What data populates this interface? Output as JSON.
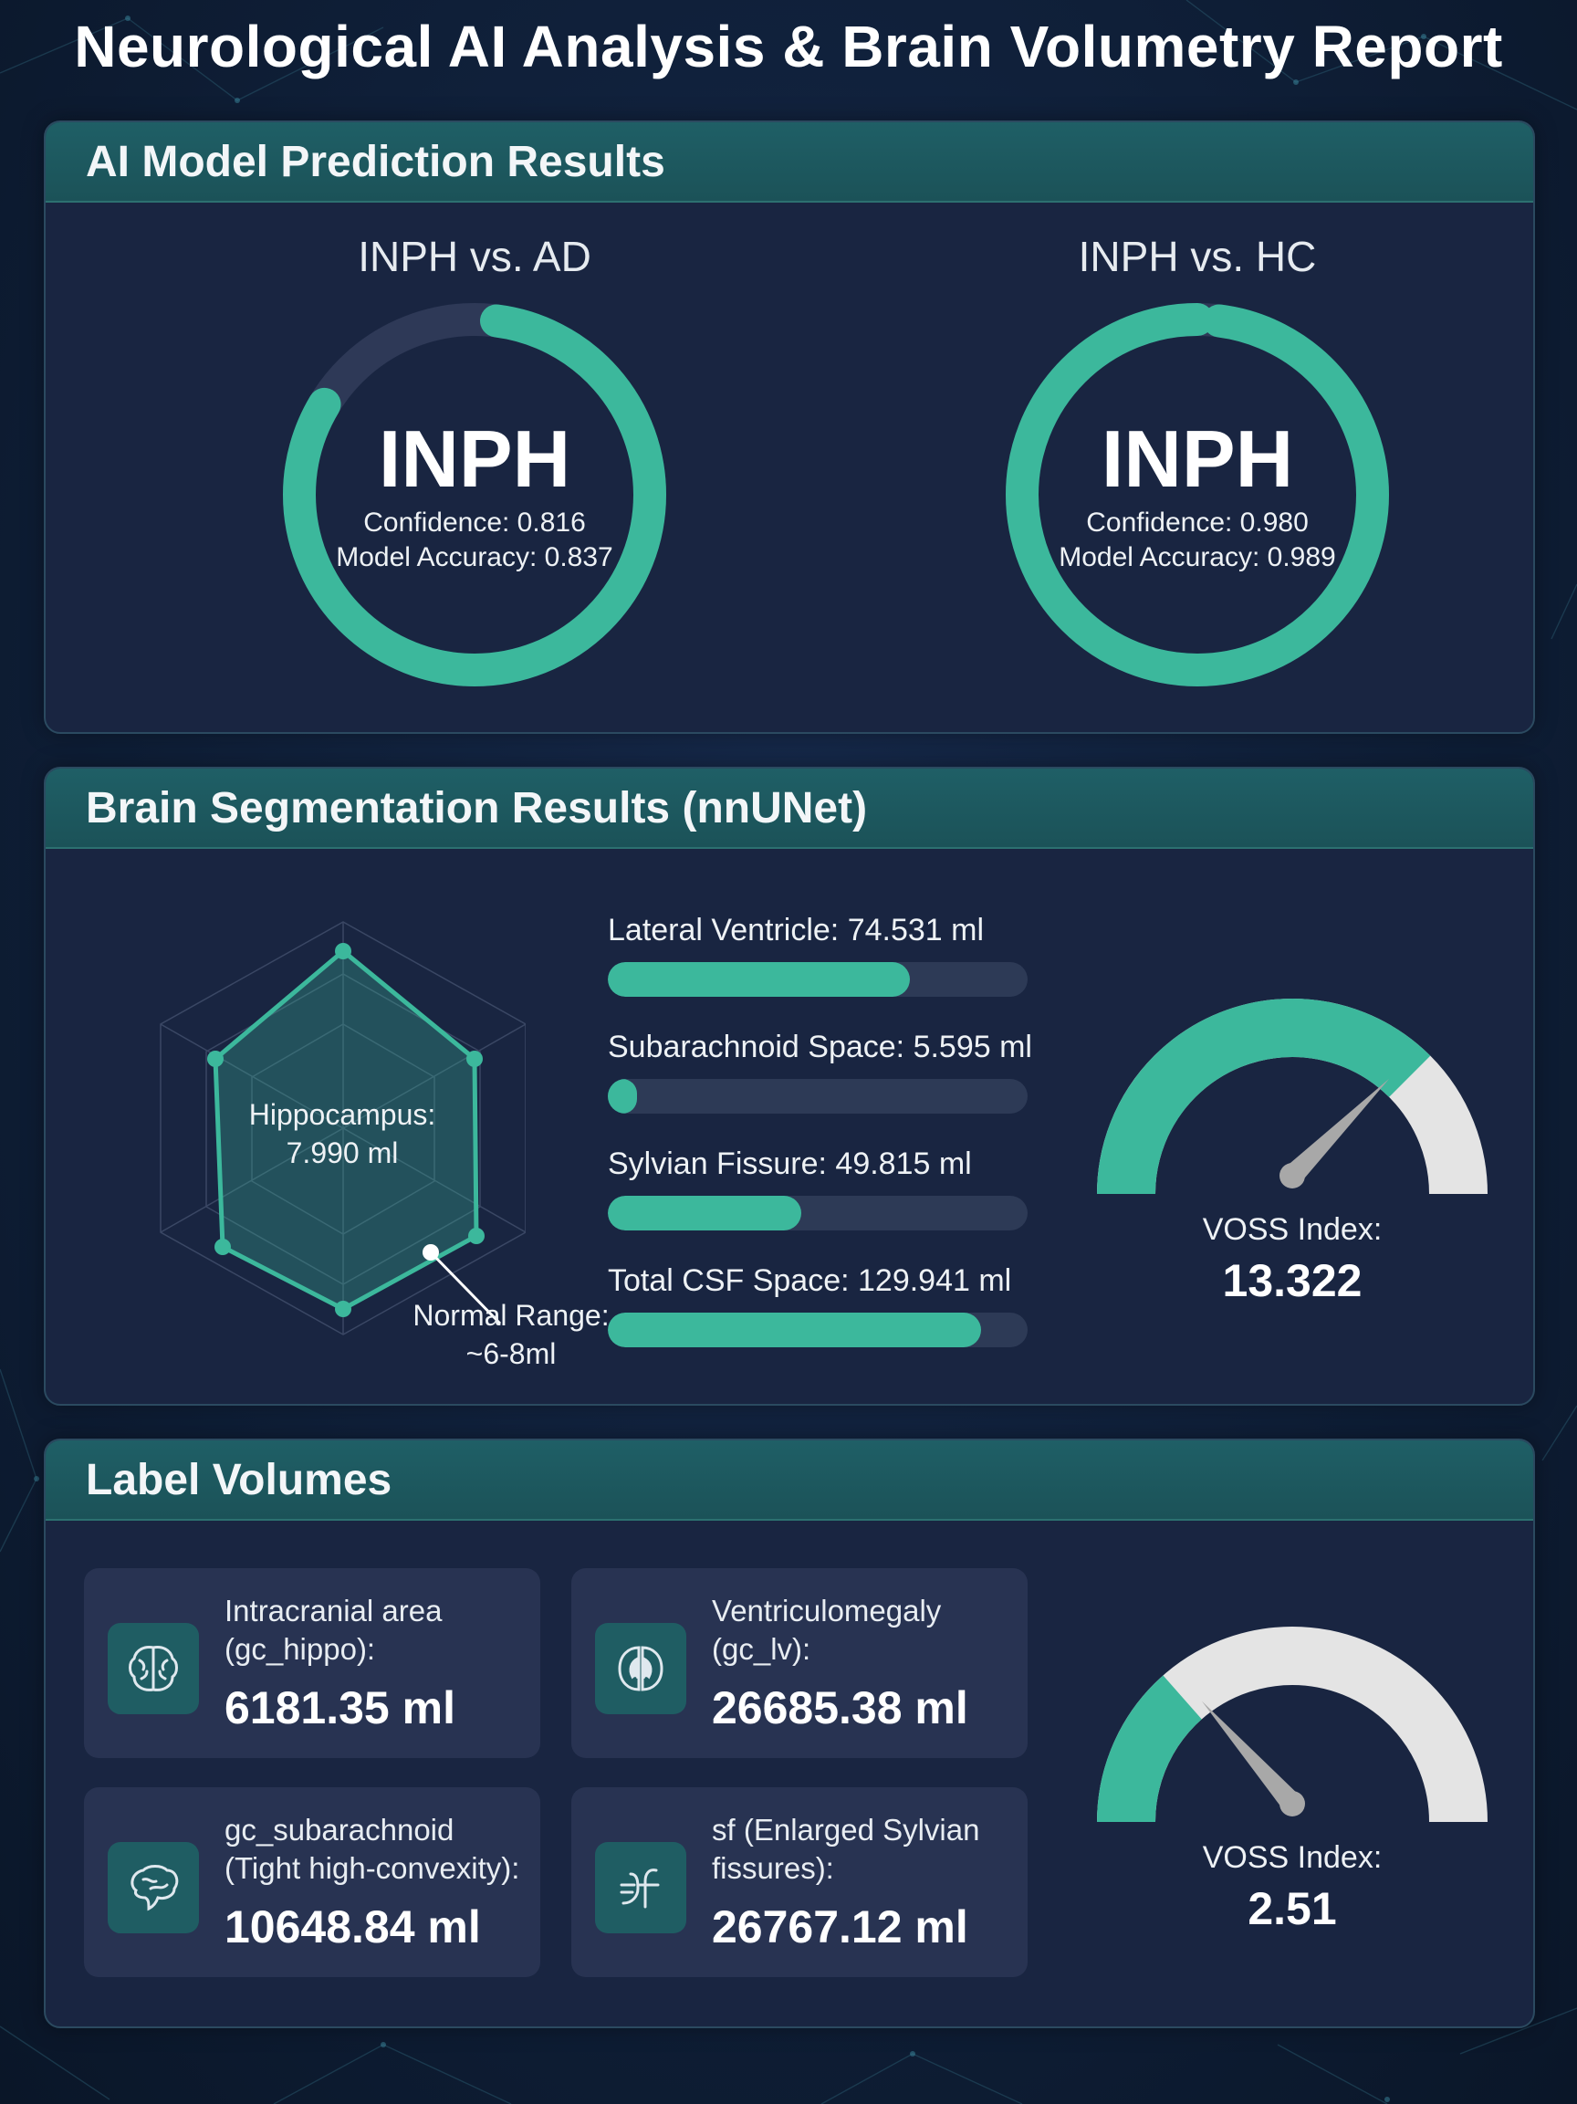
{
  "page": {
    "title": "Neurological AI Analysis & Brain Volumetry Report"
  },
  "colors": {
    "accent": "#3cb89c",
    "track": "#2d3a56",
    "gauge_track": "#e4e4e4",
    "panel": "#192541",
    "header": "#1f5f66"
  },
  "prediction": {
    "heading": "AI Model Prediction Results",
    "models": [
      {
        "title": "INPH vs. AD",
        "result": "INPH",
        "confidence_text": "Confidence: 0.816",
        "accuracy_text": "Model Accuracy: 0.837",
        "confidence": 0.816
      },
      {
        "title": "INPH vs. HC",
        "result": "INPH",
        "confidence_text": "Confidence: 0.980",
        "accuracy_text": "Model Accuracy: 0.989",
        "confidence": 0.98
      }
    ]
  },
  "segmentation": {
    "heading": "Brain Segmentation Results (nnUNet)",
    "radar": {
      "label_line1": "Hippocampus:",
      "label_line2": "7.990 ml",
      "range_line1": "Normal Range:",
      "range_line2": "~6-8ml"
    },
    "bars": [
      {
        "label": "Lateral Ventricle: 74.531 ml",
        "fraction": 0.72
      },
      {
        "label": "Subarachnoid Space: 5.595 ml",
        "fraction": 0.07
      },
      {
        "label": "Sylvian Fissure: 49.815 ml",
        "fraction": 0.46
      },
      {
        "label": "Total CSF Space: 129.941 ml",
        "fraction": 0.89
      }
    ],
    "gauge": {
      "label": "VOSS Index:",
      "value": "13.322",
      "fraction": 0.75
    }
  },
  "labels": {
    "heading": "Label Volumes",
    "cards": [
      {
        "line1": "Intracranial area",
        "line2": "(gc_hippo):",
        "value": "6181.35 ml",
        "icon": "brain-icon"
      },
      {
        "line1": "Ventriculomegaly",
        "line2": "(gc_lv):",
        "value": "26685.38 ml",
        "icon": "ventricle-icon"
      },
      {
        "line1": "gc_subarachnoid",
        "line2": "(Tight high-convexity):",
        "value": "10648.84 ml",
        "icon": "brain-side-icon"
      },
      {
        "line1": "sf (Enlarged Sylvian",
        "line2": "fissures):",
        "value": "26767.12 ml",
        "icon": "fissure-icon"
      }
    ],
    "gauge": {
      "label": "VOSS Index:",
      "value": "2.51",
      "fraction": 0.27
    }
  }
}
